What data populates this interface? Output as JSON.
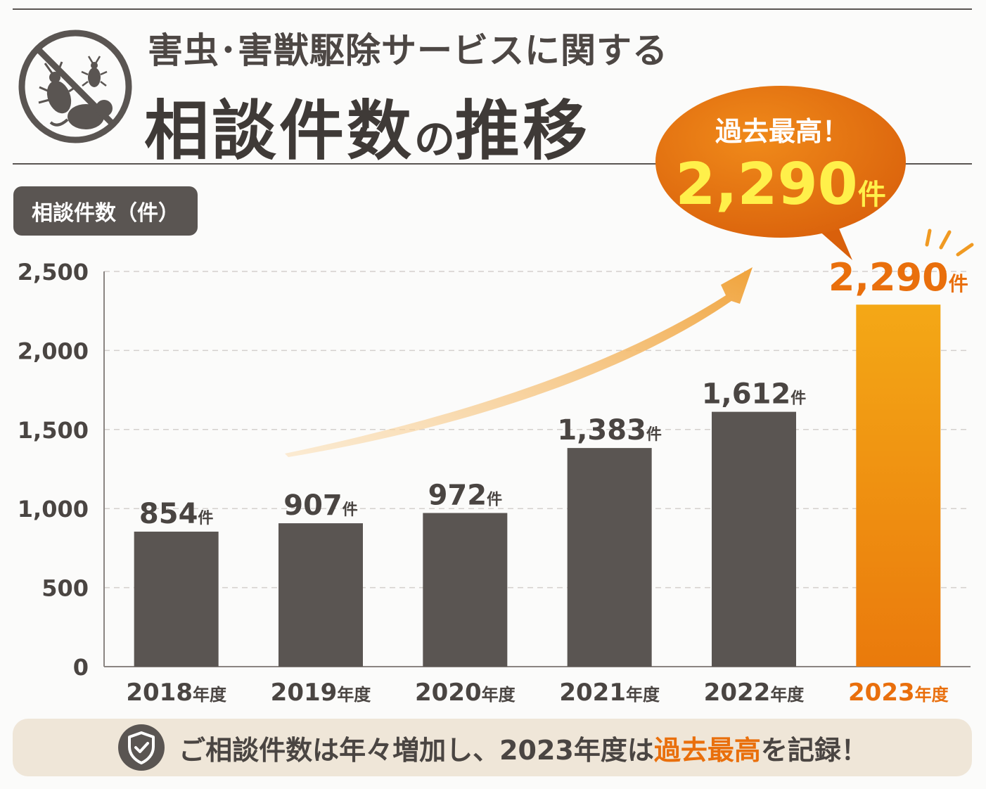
{
  "header": {
    "title_line1": "害虫･害獣駆除サービスに関する",
    "title_line2_a": "相談件数",
    "title_line2_b": "の",
    "title_line2_c": "推移",
    "logo_icon": "pest-control-icon"
  },
  "y_axis_badge": "相談件数（件）",
  "callout": {
    "line1": "過去最高！",
    "value": "2,290",
    "unit": "件"
  },
  "chart_data": {
    "type": "bar",
    "categories": [
      "2018年度",
      "2019年度",
      "2020年度",
      "2021年度",
      "2022年度",
      "2023年度"
    ],
    "values": [
      854,
      907,
      972,
      1383,
      1612,
      2290
    ],
    "value_labels": [
      "854",
      "907",
      "972",
      "1,383",
      "1,612",
      "2,290"
    ],
    "value_unit": "件",
    "ylabel": "相談件数（件）",
    "ylim": [
      0,
      2500
    ],
    "yticks": [
      0,
      500,
      1000,
      1500,
      2000,
      2500
    ],
    "ytick_labels": [
      "0",
      "500",
      "1,000",
      "1,500",
      "2,000",
      "2,500"
    ],
    "grid": true,
    "highlight_index": 5,
    "colors": {
      "bar": "#5a5552",
      "highlight_top": "#f4a816",
      "highlight_bottom": "#ea7a0c",
      "highlight_text": "#e96f0c",
      "text": "#4a4542"
    }
  },
  "footer": {
    "icon": "shield-check-icon",
    "text_before": "ご相談件数は年々増加し、2023年度は",
    "highlight": "過去最高",
    "text_after": "を記録！"
  }
}
